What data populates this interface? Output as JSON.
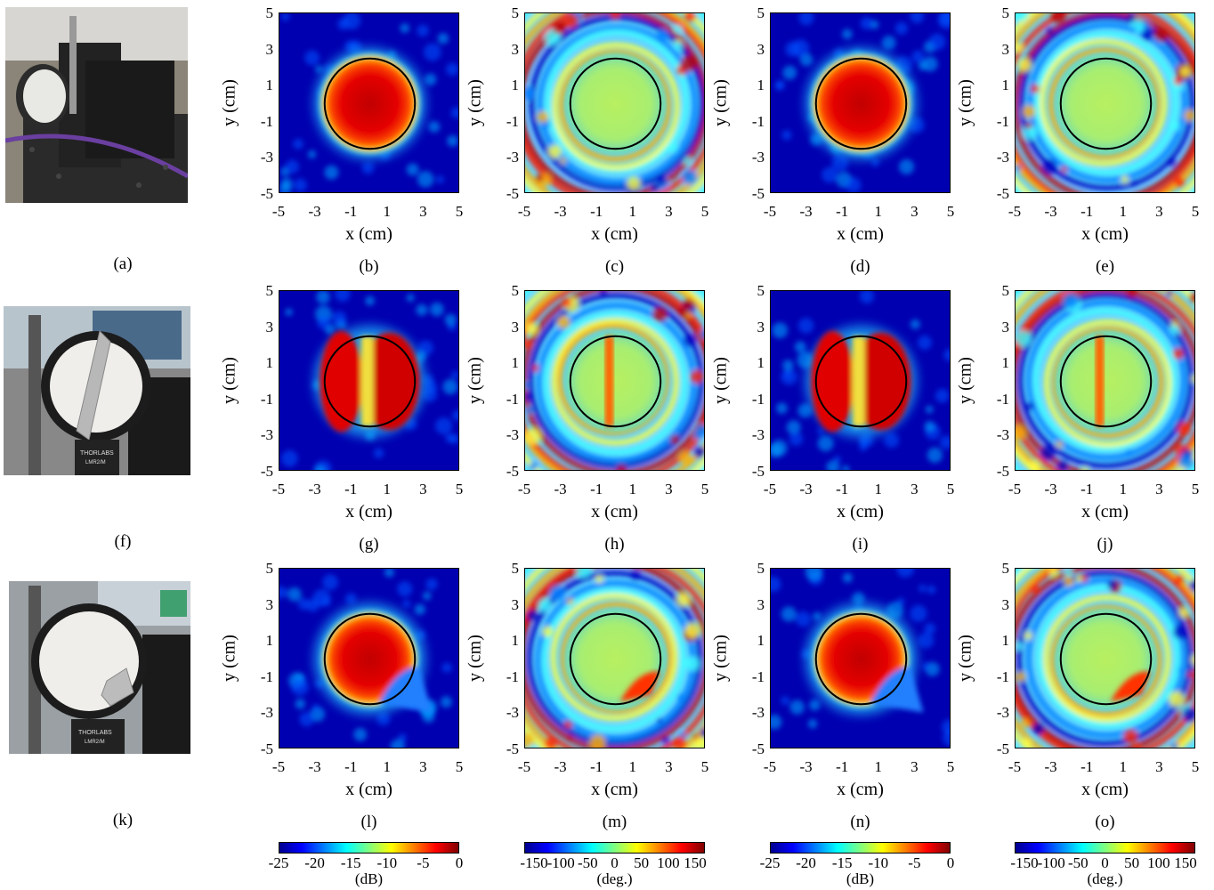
{
  "figure": {
    "captions": [
      "(a)",
      "(b)",
      "(c)",
      "(d)",
      "(e)",
      "(f)",
      "(g)",
      "(h)",
      "(i)",
      "(j)",
      "(k)",
      "(l)",
      "(m)",
      "(n)",
      "(o)"
    ],
    "xlabel": "x (cm)",
    "ylabel": "y (cm)",
    "xticks": [
      "-5",
      "-3",
      "-1",
      "1",
      "3",
      "5"
    ],
    "yticks": [
      "5",
      "3",
      "1",
      "-1",
      "-3",
      "-5"
    ],
    "photos": [
      {
        "label": "photo-lens-mount-a",
        "brand_text": ""
      },
      {
        "label": "photo-lens-foil-strip-f",
        "brand_text": "THORLABS",
        "model_text": "LMR2/M"
      },
      {
        "label": "photo-lens-foil-patch-k",
        "brand_text": "THORLABS",
        "model_text": "LMR2/M"
      }
    ],
    "colorbars": [
      {
        "ticks": [
          "-25",
          "-20",
          "-15",
          "-10",
          "-5",
          "0"
        ],
        "unit": "(dB)"
      },
      {
        "ticks": [
          "-150",
          "-100",
          "-50",
          "0",
          "50",
          "100",
          "150"
        ],
        "unit": "(deg.)"
      },
      {
        "ticks": [
          "-25",
          "-20",
          "-15",
          "-10",
          "-5",
          "0"
        ],
        "unit": "(dB)"
      },
      {
        "ticks": [
          "-150",
          "-100",
          "-50",
          "0",
          "50",
          "100",
          "150"
        ],
        "unit": "(deg.)"
      }
    ]
  },
  "chart_data": [
    {
      "type": "heatmap",
      "panel": "(b)",
      "quantity": "magnitude",
      "xlim": [
        -5,
        5
      ],
      "ylim": [
        -5,
        5
      ],
      "circle_radius_cm": 2.5,
      "clim": [
        -25,
        0
      ],
      "aperture": "full"
    },
    {
      "type": "heatmap",
      "panel": "(c)",
      "quantity": "phase",
      "xlim": [
        -5,
        5
      ],
      "ylim": [
        -5,
        5
      ],
      "circle_radius_cm": 2.5,
      "clim": [
        -180,
        180
      ],
      "aperture": "full"
    },
    {
      "type": "heatmap",
      "panel": "(d)",
      "quantity": "magnitude",
      "xlim": [
        -5,
        5
      ],
      "ylim": [
        -5,
        5
      ],
      "circle_radius_cm": 2.5,
      "clim": [
        -25,
        0
      ],
      "aperture": "full"
    },
    {
      "type": "heatmap",
      "panel": "(e)",
      "quantity": "phase",
      "xlim": [
        -5,
        5
      ],
      "ylim": [
        -5,
        5
      ],
      "circle_radius_cm": 2.5,
      "clim": [
        -180,
        180
      ],
      "aperture": "full"
    },
    {
      "type": "heatmap",
      "panel": "(g)",
      "quantity": "magnitude",
      "xlim": [
        -5,
        5
      ],
      "ylim": [
        -5,
        5
      ],
      "circle_radius_cm": 2.5,
      "clim": [
        -25,
        0
      ],
      "aperture": "strip"
    },
    {
      "type": "heatmap",
      "panel": "(h)",
      "quantity": "phase",
      "xlim": [
        -5,
        5
      ],
      "ylim": [
        -5,
        5
      ],
      "circle_radius_cm": 2.5,
      "clim": [
        -180,
        180
      ],
      "aperture": "strip"
    },
    {
      "type": "heatmap",
      "panel": "(i)",
      "quantity": "magnitude",
      "xlim": [
        -5,
        5
      ],
      "ylim": [
        -5,
        5
      ],
      "circle_radius_cm": 2.5,
      "clim": [
        -25,
        0
      ],
      "aperture": "strip"
    },
    {
      "type": "heatmap",
      "panel": "(j)",
      "quantity": "phase",
      "xlim": [
        -5,
        5
      ],
      "ylim": [
        -5,
        5
      ],
      "circle_radius_cm": 2.5,
      "clim": [
        -180,
        180
      ],
      "aperture": "strip"
    },
    {
      "type": "heatmap",
      "panel": "(l)",
      "quantity": "magnitude",
      "xlim": [
        -5,
        5
      ],
      "ylim": [
        -5,
        5
      ],
      "circle_radius_cm": 2.5,
      "clim": [
        -25,
        0
      ],
      "aperture": "patch"
    },
    {
      "type": "heatmap",
      "panel": "(m)",
      "quantity": "phase",
      "xlim": [
        -5,
        5
      ],
      "ylim": [
        -5,
        5
      ],
      "circle_radius_cm": 2.5,
      "clim": [
        -180,
        180
      ],
      "aperture": "patch"
    },
    {
      "type": "heatmap",
      "panel": "(n)",
      "quantity": "magnitude",
      "xlim": [
        -5,
        5
      ],
      "ylim": [
        -5,
        5
      ],
      "circle_radius_cm": 2.5,
      "clim": [
        -25,
        0
      ],
      "aperture": "patch"
    },
    {
      "type": "heatmap",
      "panel": "(o)",
      "quantity": "phase",
      "xlim": [
        -5,
        5
      ],
      "ylim": [
        -5,
        5
      ],
      "circle_radius_cm": 2.5,
      "clim": [
        -180,
        180
      ],
      "aperture": "patch"
    }
  ]
}
